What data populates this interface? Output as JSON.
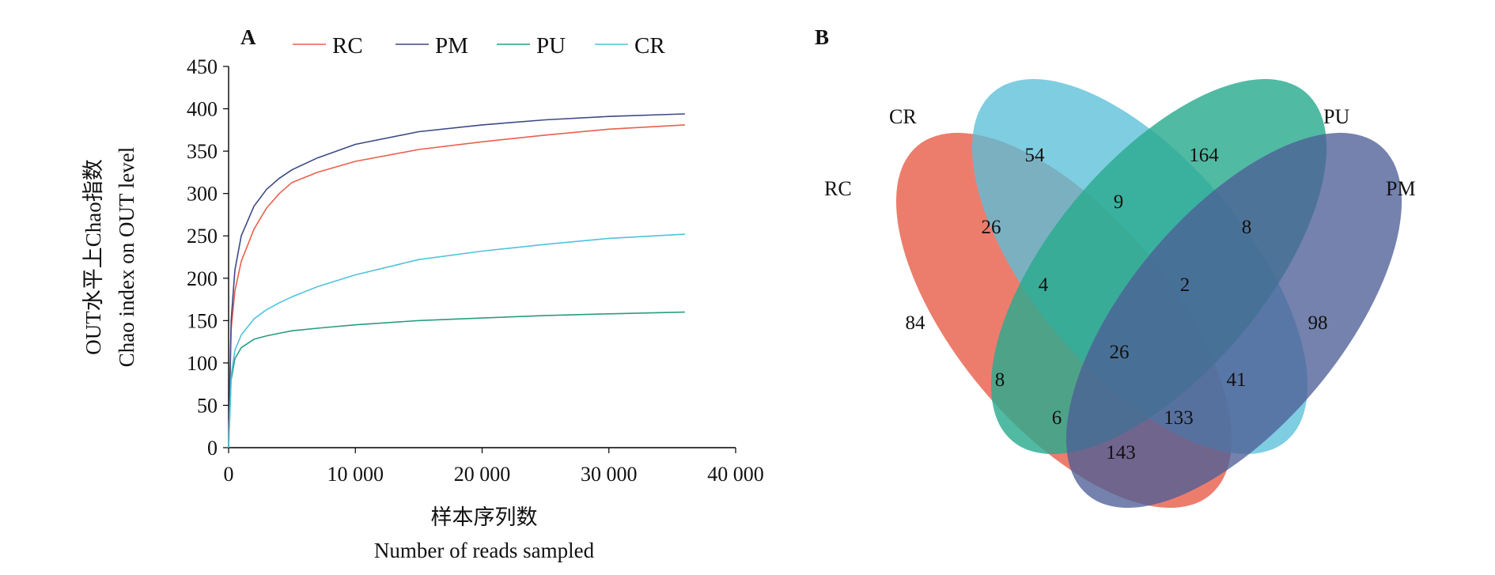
{
  "panel_a_label": "A",
  "panel_b_label": "B",
  "chart_data": [
    {
      "type": "line",
      "panel": "A",
      "title": "",
      "xlabel_cn": "样本序列数",
      "xlabel_en": "Number of reads sampled",
      "ylabel_cn": "OUT水平上Chao指数",
      "ylabel_en": "Chao index on OUT level",
      "xlim": [
        0,
        40000
      ],
      "ylim": [
        0,
        450
      ],
      "x_ticks": [
        0,
        10000,
        20000,
        30000,
        40000
      ],
      "x_tick_labels": [
        "0",
        "10 000",
        "20 000",
        "30 000",
        "40 000"
      ],
      "y_ticks": [
        0,
        50,
        100,
        150,
        200,
        250,
        300,
        350,
        400,
        450
      ],
      "y_tick_labels": [
        "0",
        "50",
        "100",
        "150",
        "200",
        "250",
        "300",
        "350",
        "400",
        "450"
      ],
      "legend_position": "top",
      "series": [
        {
          "name": "RC",
          "color": "#e8604c",
          "x": [
            0,
            200,
            500,
            1000,
            2000,
            3000,
            4000,
            5000,
            7000,
            10000,
            15000,
            20000,
            25000,
            30000,
            36000
          ],
          "y": [
            0,
            140,
            185,
            220,
            258,
            283,
            300,
            313,
            325,
            338,
            352,
            361,
            369,
            376,
            381
          ]
        },
        {
          "name": "PM",
          "color": "#3b4a85",
          "x": [
            0,
            200,
            500,
            1000,
            2000,
            3000,
            4000,
            5000,
            7000,
            10000,
            15000,
            20000,
            25000,
            30000,
            36000
          ],
          "y": [
            0,
            150,
            210,
            250,
            285,
            305,
            318,
            328,
            342,
            358,
            373,
            381,
            387,
            391,
            394
          ]
        },
        {
          "name": "PU",
          "color": "#2a9d7f",
          "x": [
            0,
            200,
            500,
            1000,
            2000,
            3000,
            4000,
            5000,
            7000,
            10000,
            15000,
            20000,
            25000,
            30000,
            36000
          ],
          "y": [
            0,
            80,
            105,
            118,
            128,
            132,
            135,
            138,
            141,
            145,
            150,
            153,
            156,
            158,
            160
          ]
        },
        {
          "name": "CR",
          "color": "#4fc3dc",
          "x": [
            0,
            200,
            500,
            1000,
            2000,
            3000,
            4000,
            5000,
            7000,
            10000,
            15000,
            20000,
            25000,
            30000,
            36000
          ],
          "y": [
            0,
            85,
            115,
            133,
            152,
            163,
            171,
            178,
            190,
            204,
            222,
            232,
            240,
            247,
            252
          ]
        }
      ]
    },
    {
      "type": "venn",
      "panel": "B",
      "sets": [
        {
          "name": "RC",
          "color": "#e8604c"
        },
        {
          "name": "CR",
          "color": "#5bbfd9"
        },
        {
          "name": "PU",
          "color": "#2bab8f"
        },
        {
          "name": "PM",
          "color": "#4d5f96"
        }
      ],
      "regions": [
        {
          "sets": [
            "CR"
          ],
          "value": "54"
        },
        {
          "sets": [
            "PU"
          ],
          "value": "164"
        },
        {
          "sets": [
            "CR",
            "PU"
          ],
          "value": "9"
        },
        {
          "sets": [
            "RC",
            "CR"
          ],
          "value": "26"
        },
        {
          "sets": [
            "PU",
            "PM"
          ],
          "value": "8"
        },
        {
          "sets": [
            "RC",
            "CR",
            "PU"
          ],
          "value": "4"
        },
        {
          "sets": [
            "CR",
            "PU",
            "PM"
          ],
          "value": "2"
        },
        {
          "sets": [
            "RC"
          ],
          "value": "84"
        },
        {
          "sets": [
            "PM"
          ],
          "value": "98"
        },
        {
          "sets": [
            "RC",
            "CR",
            "PU",
            "PM"
          ],
          "value": "26"
        },
        {
          "sets": [
            "RC",
            "PU"
          ],
          "value": "8"
        },
        {
          "sets": [
            "CR",
            "PM"
          ],
          "value": "41"
        },
        {
          "sets": [
            "RC",
            "PU",
            "PM"
          ],
          "value": "6"
        },
        {
          "sets": [
            "RC",
            "CR",
            "PM"
          ],
          "value": "133"
        },
        {
          "sets": [
            "RC",
            "PM"
          ],
          "value": "143"
        }
      ]
    }
  ]
}
